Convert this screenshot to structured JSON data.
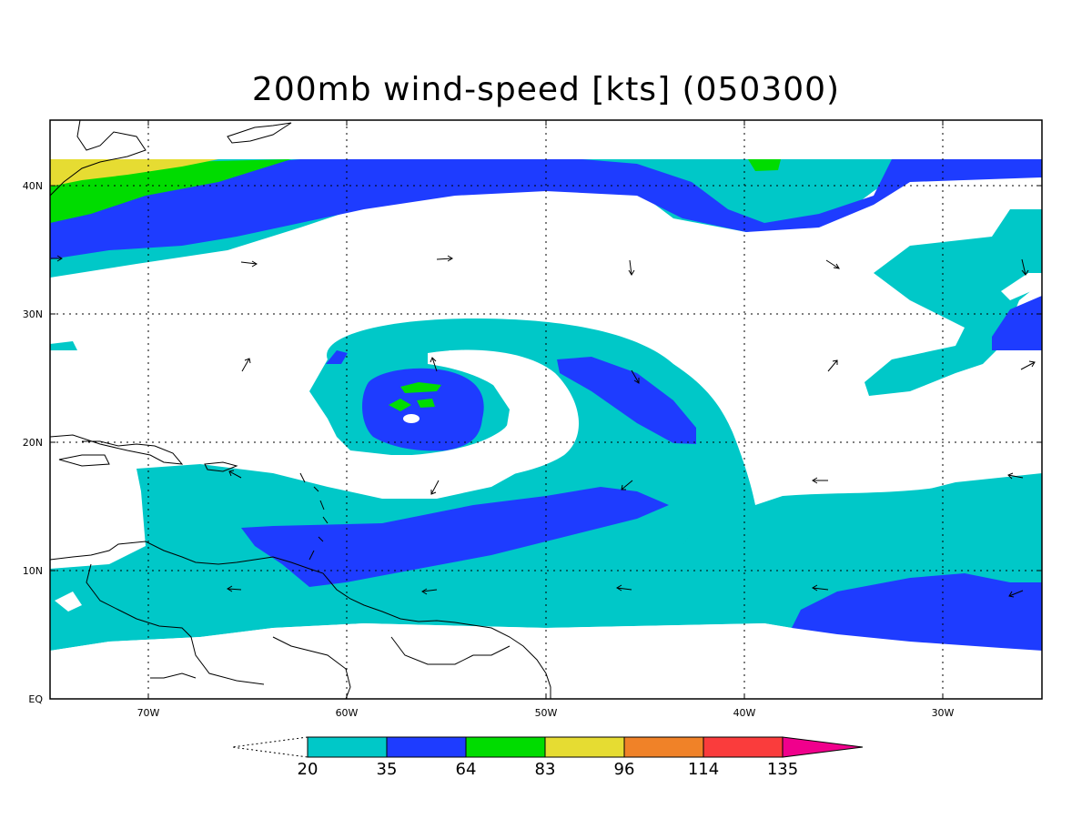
{
  "title": "200mb wind-speed [kts] (050300)",
  "colors": {
    "c20": "#00c8c8",
    "c35": "#1e3cff",
    "c64": "#00dc00",
    "c83": "#e6dc32",
    "c96": "#f08228",
    "c114": "#fa3c3c",
    "c135": "#f0008c",
    "coast": "#000000",
    "grid": "#000000"
  },
  "axes": {
    "lon_labels": [
      "70W",
      "60W",
      "50W",
      "40W",
      "30W"
    ],
    "lat_labels": [
      "EQ",
      "10N",
      "20N",
      "30N",
      "40N"
    ]
  },
  "colorbar": {
    "labels": [
      "20",
      "35",
      "64",
      "83",
      "96",
      "114",
      "135"
    ],
    "colors": [
      "#00c8c8",
      "#1e3cff",
      "#00dc00",
      "#e6dc32",
      "#f08228",
      "#fa3c3c",
      "#f0008c"
    ]
  }
}
